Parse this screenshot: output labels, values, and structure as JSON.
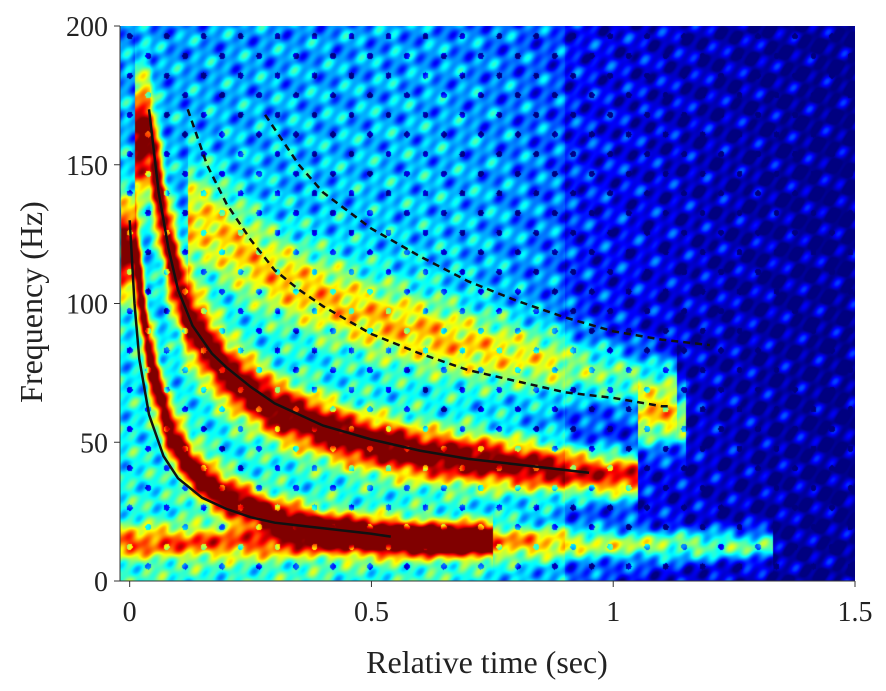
{
  "chart_data": {
    "type": "heatmap",
    "title": "",
    "xlabel": "Relative time (sec)",
    "ylabel": "Frequency (Hz)",
    "xlim": [
      -0.02,
      1.5
    ],
    "ylim": [
      0,
      200
    ],
    "x_ticks": [
      0,
      0.5,
      1,
      1.5
    ],
    "x_tick_labels": [
      "0",
      "0.5",
      "1",
      "1.5"
    ],
    "y_ticks": [
      0,
      50,
      100,
      150,
      200
    ],
    "y_tick_labels": [
      "0",
      "50",
      "100",
      "150",
      "200"
    ],
    "colormap": "jet",
    "grid": false,
    "legend": "none",
    "heat_ridges": [
      {
        "name": "band-low-frequency",
        "x": [
          0.0,
          0.2,
          0.4,
          0.6,
          0.8,
          1.1,
          1.3
        ],
        "y": [
          14,
          14,
          14,
          15,
          14,
          13,
          13
        ],
        "strength": 0.55
      },
      {
        "name": "ridge-lower-fit-region",
        "x": [
          0.01,
          0.04,
          0.08,
          0.13,
          0.2,
          0.3,
          0.4,
          0.55,
          0.62,
          0.72
        ],
        "y": [
          120,
          80,
          55,
          40,
          30,
          23,
          19,
          16,
          15,
          15
        ],
        "strength": 1.0
      },
      {
        "name": "ridge-upper-fit-region",
        "x": [
          0.04,
          0.08,
          0.12,
          0.2,
          0.3,
          0.45,
          0.6,
          0.8,
          0.95,
          1.02
        ],
        "y": [
          160,
          120,
          95,
          75,
          62,
          52,
          46,
          42,
          39,
          38
        ],
        "strength": 1.0
      },
      {
        "name": "hot-spot-1.1s",
        "x": [
          1.08,
          1.12
        ],
        "y": [
          58,
          58
        ],
        "strength": 0.6
      },
      {
        "name": "diffuse-upper-harmonics",
        "x": [
          0.15,
          0.3,
          0.5,
          0.7,
          0.9,
          1.1
        ],
        "y": [
          130,
          110,
          95,
          85,
          78,
          70
        ],
        "strength": 0.45
      }
    ],
    "series": [
      {
        "style": "solid",
        "color": "#111111",
        "x": [
          0.0,
          0.01,
          0.02,
          0.04,
          0.07,
          0.1,
          0.15,
          0.2,
          0.25,
          0.3,
          0.35,
          0.4,
          0.45,
          0.5,
          0.54
        ],
        "y": [
          130,
          100,
          80,
          60,
          45,
          37,
          30,
          26,
          23,
          21,
          20,
          19,
          18,
          17,
          16
        ]
      },
      {
        "style": "solid",
        "color": "#111111",
        "x": [
          0.04,
          0.06,
          0.08,
          0.1,
          0.13,
          0.17,
          0.2,
          0.25,
          0.3,
          0.4,
          0.5,
          0.6,
          0.7,
          0.8,
          0.9,
          0.95
        ],
        "y": [
          170,
          140,
          120,
          105,
          92,
          82,
          77,
          70,
          64,
          56,
          51,
          47,
          44,
          42,
          40,
          39
        ]
      },
      {
        "style": "dashed",
        "color": "#111111",
        "x": [
          0.12,
          0.16,
          0.2,
          0.25,
          0.3,
          0.35,
          0.4,
          0.5,
          0.6,
          0.7,
          0.8,
          0.9,
          1.0,
          1.1,
          1.12
        ],
        "y": [
          170,
          150,
          136,
          123,
          112,
          105,
          99,
          89,
          82,
          76,
          72,
          68,
          66,
          63,
          63
        ]
      },
      {
        "style": "dashed",
        "color": "#111111",
        "x": [
          0.28,
          0.35,
          0.4,
          0.5,
          0.6,
          0.7,
          0.8,
          0.9,
          1.0,
          1.1,
          1.2
        ],
        "y": [
          168,
          150,
          140,
          127,
          117,
          108,
          101,
          95,
          90,
          87,
          85
        ]
      }
    ]
  }
}
